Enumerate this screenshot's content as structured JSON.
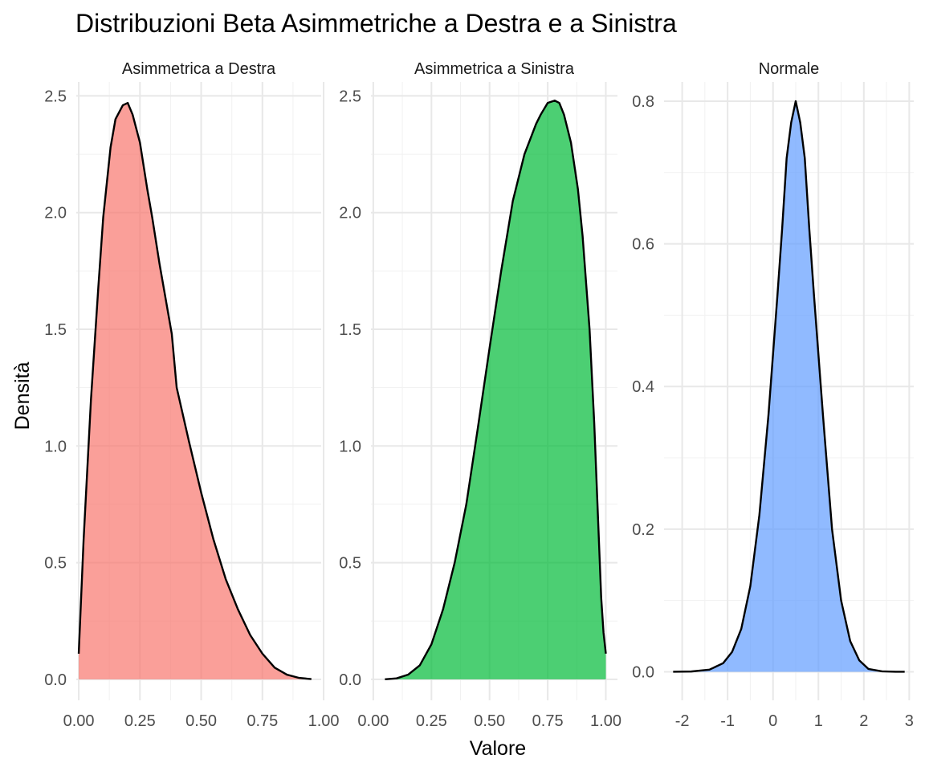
{
  "chart_data": {
    "type": "area",
    "title": "Distribuzioni Beta Asimmetriche a Destra e a Sinistra",
    "xlabel": "Valore",
    "ylabel": "Densità",
    "grid": true,
    "legend": "none",
    "panels": [
      {
        "strip": "Asimmetrica a Destra",
        "fill": "#f8766d",
        "xlim": [
          -0.01,
          0.99
        ],
        "ylim": [
          -0.09,
          2.56
        ],
        "x_ticks": [
          {
            "v": 0,
            "label": "0.00"
          },
          {
            "v": 0.25,
            "label": "0.25"
          },
          {
            "v": 0.5,
            "label": "0.50"
          },
          {
            "v": 0.75,
            "label": "0.75"
          },
          {
            "v": 1,
            "label": "1.00"
          }
        ],
        "y_ticks": [
          {
            "v": 0,
            "label": "0.0"
          },
          {
            "v": 0.5,
            "label": "0.5"
          },
          {
            "v": 1,
            "label": "1.0"
          },
          {
            "v": 1.5,
            "label": "1.5"
          },
          {
            "v": 2,
            "label": "2.0"
          },
          {
            "v": 2.5,
            "label": "2.5"
          }
        ],
        "x": [
          0.0,
          0.02,
          0.05,
          0.08,
          0.1,
          0.13,
          0.15,
          0.18,
          0.2,
          0.22,
          0.25,
          0.28,
          0.3,
          0.33,
          0.35,
          0.38,
          0.4,
          0.45,
          0.5,
          0.55,
          0.6,
          0.65,
          0.7,
          0.75,
          0.8,
          0.85,
          0.9,
          0.95
        ],
        "y": [
          0.11,
          0.6,
          1.2,
          1.68,
          1.98,
          2.28,
          2.4,
          2.46,
          2.47,
          2.42,
          2.3,
          2.1,
          1.98,
          1.78,
          1.66,
          1.48,
          1.25,
          1.02,
          0.8,
          0.6,
          0.43,
          0.3,
          0.19,
          0.11,
          0.05,
          0.02,
          0.006,
          0.001
        ]
      },
      {
        "strip": "Asimmetrica a Sinistra",
        "fill": "#00ba38",
        "xlim": [
          -0.01,
          1.05
        ],
        "ylim": [
          -0.09,
          2.56
        ],
        "x_ticks": [
          {
            "v": 0,
            "label": "0.00"
          },
          {
            "v": 0.25,
            "label": "0.25"
          },
          {
            "v": 0.5,
            "label": "0.50"
          },
          {
            "v": 0.75,
            "label": "0.75"
          },
          {
            "v": 1,
            "label": "1.00"
          }
        ],
        "y_ticks": [
          {
            "v": 0,
            "label": "0.0"
          },
          {
            "v": 0.5,
            "label": "0.5"
          },
          {
            "v": 1,
            "label": "1.0"
          },
          {
            "v": 1.5,
            "label": "1.5"
          },
          {
            "v": 2,
            "label": "2.0"
          },
          {
            "v": 2.5,
            "label": "2.5"
          }
        ],
        "x": [
          0.05,
          0.1,
          0.15,
          0.2,
          0.25,
          0.3,
          0.35,
          0.4,
          0.45,
          0.5,
          0.55,
          0.6,
          0.65,
          0.7,
          0.72,
          0.75,
          0.78,
          0.8,
          0.82,
          0.85,
          0.88,
          0.9,
          0.93,
          0.95,
          0.97,
          0.98,
          0.99,
          1.0
        ],
        "y": [
          0.0,
          0.004,
          0.02,
          0.06,
          0.15,
          0.3,
          0.5,
          0.75,
          1.08,
          1.42,
          1.75,
          2.05,
          2.25,
          2.38,
          2.42,
          2.47,
          2.48,
          2.47,
          2.42,
          2.3,
          2.1,
          1.9,
          1.5,
          1.1,
          0.6,
          0.35,
          0.2,
          0.11
        ]
      },
      {
        "strip": "Normale",
        "fill": "#619cff",
        "xlim": [
          -2.4,
          3.1
        ],
        "ylim": [
          -0.04,
          0.827
        ],
        "x_ticks": [
          {
            "v": -2,
            "label": "-2"
          },
          {
            "v": -1,
            "label": "-1"
          },
          {
            "v": 0,
            "label": "0"
          },
          {
            "v": 1,
            "label": "1"
          },
          {
            "v": 2,
            "label": "2"
          },
          {
            "v": 3,
            "label": "3"
          }
        ],
        "y_ticks": [
          {
            "v": 0,
            "label": "0.0"
          },
          {
            "v": 0.2,
            "label": "0.2"
          },
          {
            "v": 0.4,
            "label": "0.4"
          },
          {
            "v": 0.6,
            "label": "0.6"
          },
          {
            "v": 0.8,
            "label": "0.8"
          }
        ],
        "x": [
          -2.2,
          -1.8,
          -1.4,
          -1.1,
          -0.9,
          -0.7,
          -0.5,
          -0.3,
          -0.1,
          0.1,
          0.2,
          0.3,
          0.4,
          0.5,
          0.6,
          0.7,
          0.8,
          0.9,
          1.1,
          1.3,
          1.5,
          1.7,
          1.9,
          2.1,
          2.4,
          2.7,
          2.9
        ],
        "y": [
          0.0,
          0.0004,
          0.003,
          0.012,
          0.028,
          0.06,
          0.12,
          0.22,
          0.36,
          0.53,
          0.62,
          0.72,
          0.77,
          0.8,
          0.77,
          0.72,
          0.62,
          0.53,
          0.36,
          0.2,
          0.1,
          0.043,
          0.016,
          0.004,
          0.0006,
          0.0001,
          0.0
        ]
      }
    ]
  }
}
